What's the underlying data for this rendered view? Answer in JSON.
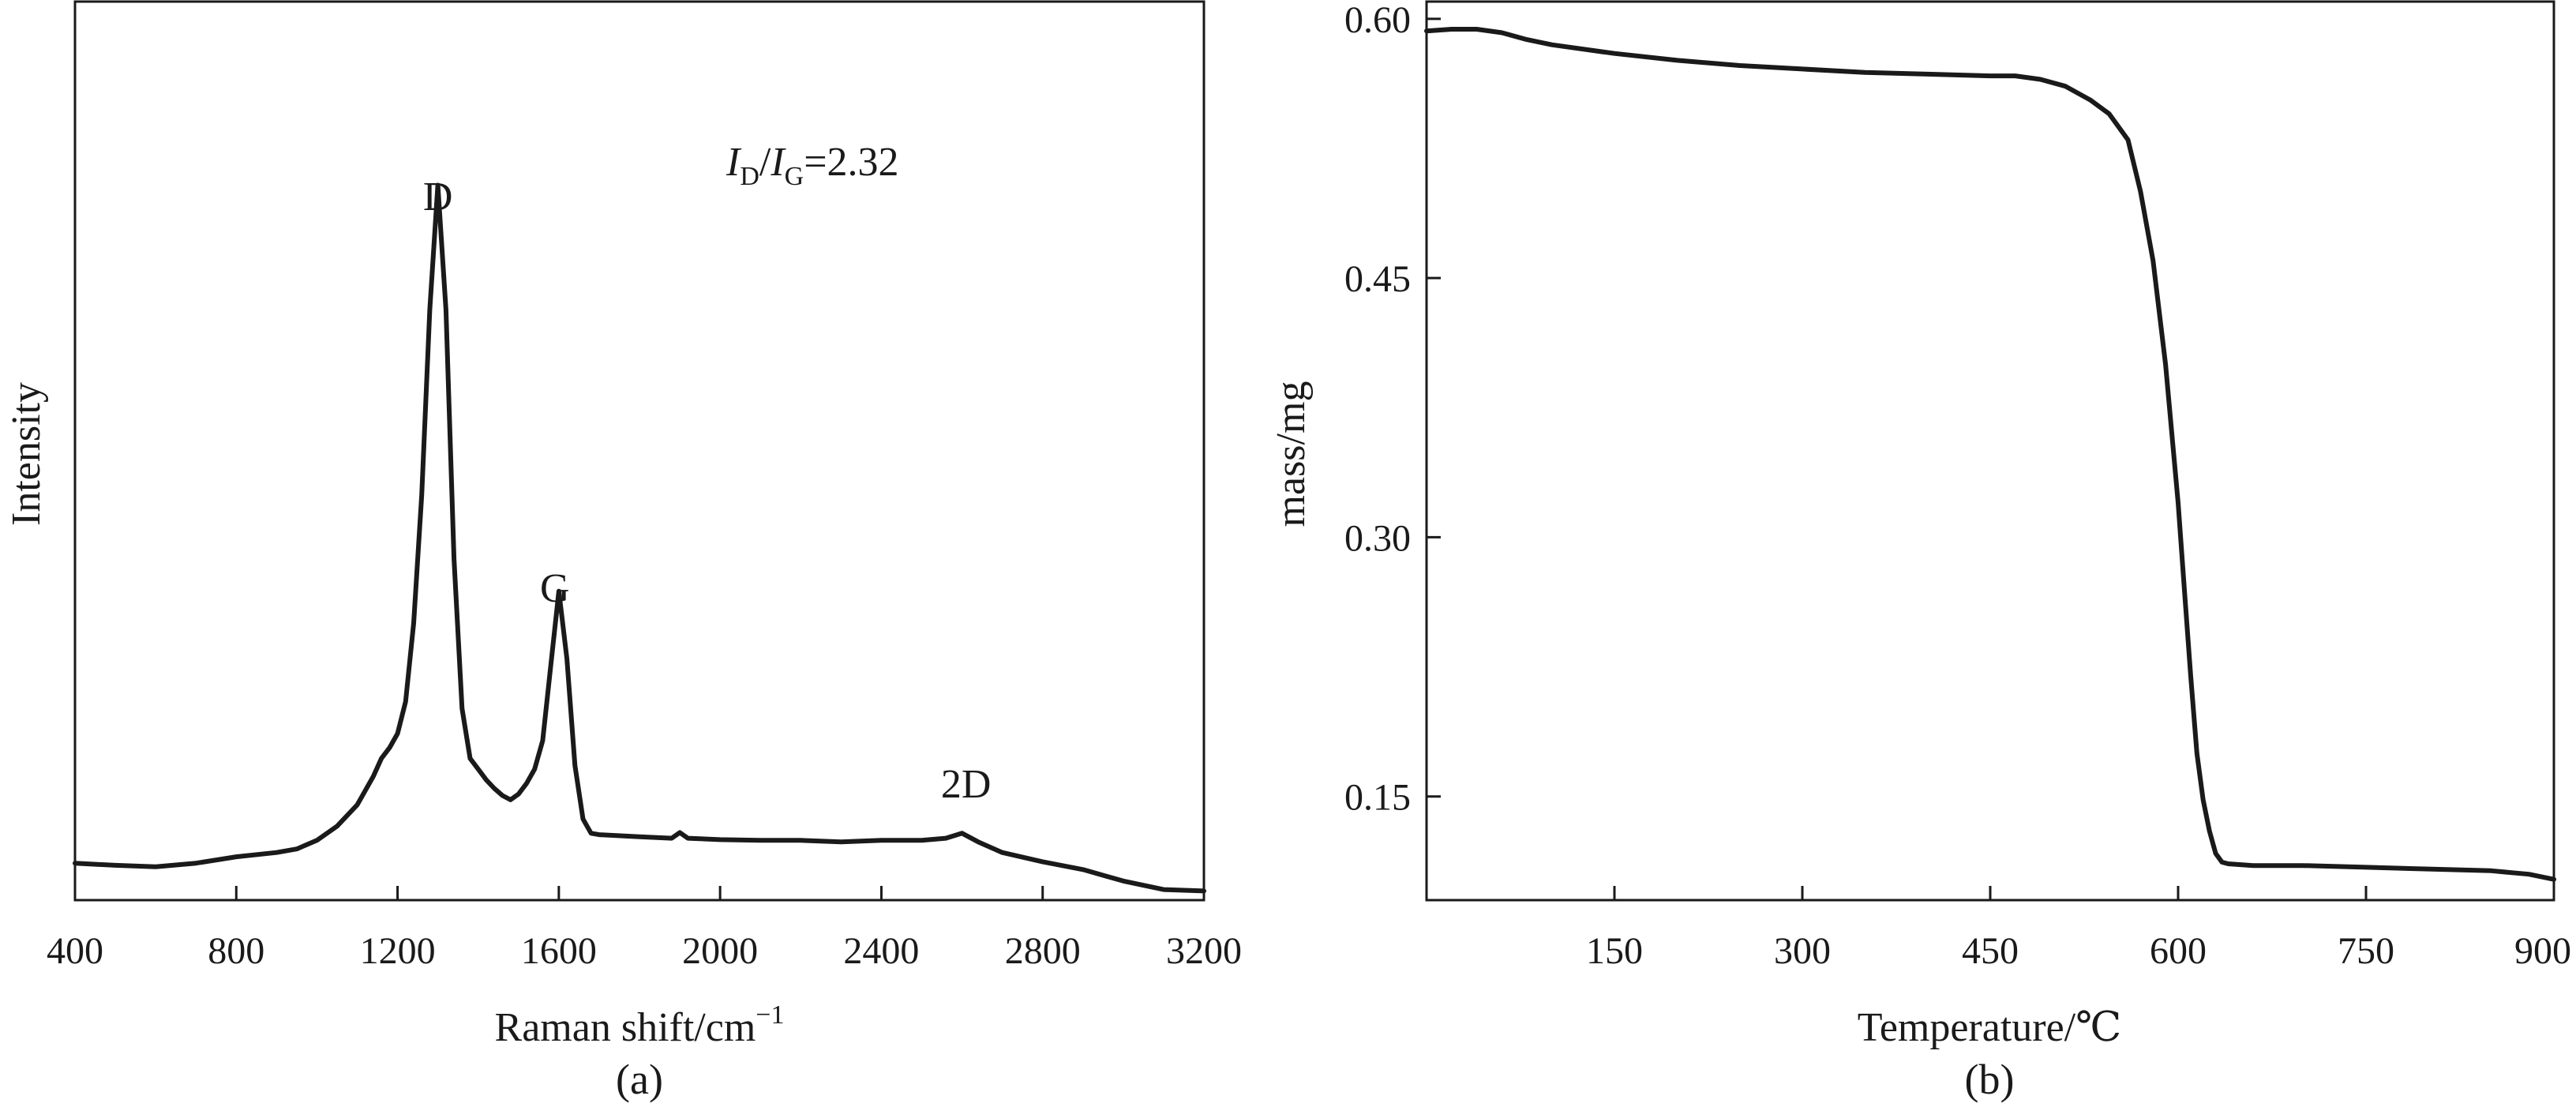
{
  "chart_data": [
    {
      "type": "line",
      "caption": "(a)",
      "xlabel": "Raman shift/cm",
      "xlabel_sup": "−1",
      "ylabel": "Intensity",
      "xlim": [
        400,
        3200
      ],
      "ylim": [
        0,
        1
      ],
      "x_ticks": [
        400,
        800,
        1200,
        1600,
        2000,
        2400,
        2800,
        3200
      ],
      "grid": false,
      "annotations": [
        {
          "text": "D",
          "x": 1300,
          "y": 0.96
        },
        {
          "text": "G",
          "x": 1590,
          "y": 0.41
        },
        {
          "text": "2D",
          "x": 2610,
          "y": 0.135
        }
      ],
      "ratio_label": {
        "i1": "I",
        "s1": "D",
        "slash": "/",
        "i2": "I",
        "s2": "G",
        "rest": "=2.32"
      },
      "series": [
        {
          "x": [
            400,
            500,
            600,
            700,
            800,
            900,
            950,
            1000,
            1050,
            1100,
            1140,
            1160,
            1180,
            1200,
            1220,
            1240,
            1260,
            1280,
            1300,
            1320,
            1340,
            1360,
            1380,
            1400,
            1420,
            1440,
            1460,
            1480,
            1500,
            1520,
            1540,
            1560,
            1580,
            1600,
            1620,
            1640,
            1660,
            1680,
            1700,
            1800,
            1880,
            1900,
            1920,
            2000,
            2100,
            2200,
            2300,
            2400,
            2500,
            2560,
            2600,
            2640,
            2700,
            2800,
            2900,
            3000,
            3100,
            3200
          ],
          "y": [
            0.043,
            0.04,
            0.038,
            0.043,
            0.052,
            0.058,
            0.063,
            0.075,
            0.095,
            0.125,
            0.165,
            0.19,
            0.205,
            0.225,
            0.27,
            0.38,
            0.56,
            0.82,
            0.995,
            0.82,
            0.47,
            0.26,
            0.19,
            0.175,
            0.16,
            0.148,
            0.138,
            0.132,
            0.14,
            0.155,
            0.175,
            0.215,
            0.32,
            0.425,
            0.33,
            0.18,
            0.105,
            0.085,
            0.083,
            0.08,
            0.078,
            0.086,
            0.078,
            0.076,
            0.075,
            0.075,
            0.073,
            0.075,
            0.075,
            0.078,
            0.085,
            0.073,
            0.058,
            0.045,
            0.034,
            0.018,
            0.006,
            0.004
          ]
        }
      ]
    },
    {
      "type": "line",
      "caption": "(b)",
      "xlabel": "Temperature/℃",
      "ylabel": "mass/mg",
      "xlim": [
        0,
        900
      ],
      "ylim": [
        0.09,
        0.61
      ],
      "x_ticks": [
        150,
        300,
        450,
        600,
        750,
        900
      ],
      "y_ticks": [
        0.15,
        0.3,
        0.45,
        0.6
      ],
      "y_tick_labels": [
        "0.15",
        "0.30",
        "0.45",
        "0.60"
      ],
      "grid": false,
      "series": [
        {
          "x": [
            0,
            20,
            40,
            60,
            80,
            100,
            150,
            200,
            250,
            300,
            350,
            400,
            450,
            470,
            490,
            510,
            530,
            545,
            560,
            570,
            580,
            590,
            600,
            605,
            610,
            615,
            620,
            625,
            630,
            635,
            640,
            660,
            700,
            750,
            800,
            850,
            880,
            900
          ],
          "y": [
            0.593,
            0.594,
            0.594,
            0.592,
            0.588,
            0.585,
            0.58,
            0.576,
            0.573,
            0.571,
            0.569,
            0.568,
            0.567,
            0.567,
            0.565,
            0.561,
            0.553,
            0.545,
            0.53,
            0.5,
            0.46,
            0.4,
            0.32,
            0.27,
            0.22,
            0.175,
            0.148,
            0.13,
            0.117,
            0.112,
            0.111,
            0.11,
            0.11,
            0.109,
            0.108,
            0.107,
            0.105,
            0.102
          ]
        }
      ]
    }
  ]
}
